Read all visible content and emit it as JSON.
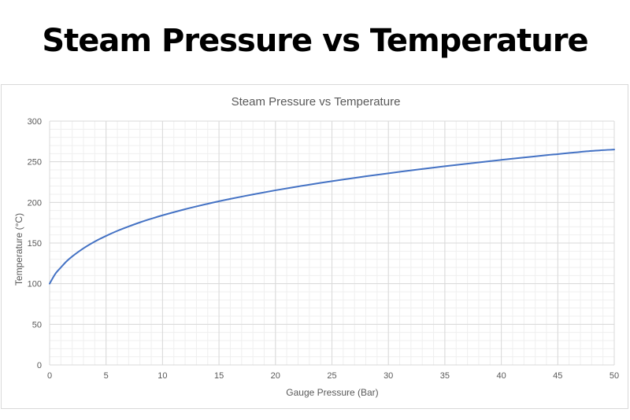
{
  "page": {
    "heading": "Steam Pressure vs Temperature"
  },
  "chart_data": {
    "type": "line",
    "title": "Steam Pressure vs Temperature",
    "xlabel": "Gauge Pressure (Bar)",
    "ylabel": "Temperature (°C)",
    "xlim": [
      0,
      50
    ],
    "ylim": [
      0,
      300
    ],
    "x_ticks": [
      0,
      5,
      10,
      15,
      20,
      25,
      30,
      35,
      40,
      45,
      50
    ],
    "y_ticks": [
      0,
      50,
      100,
      150,
      200,
      250,
      300
    ],
    "grid": true,
    "minor_grid": true,
    "legend": "none",
    "line_color": "#4472c4",
    "series": [
      {
        "x": [
          0,
          0.5,
          1,
          1.5,
          2,
          3,
          4,
          5,
          6,
          7,
          8,
          9,
          10,
          12,
          14,
          15,
          16,
          18,
          20,
          22,
          24,
          25,
          26,
          28,
          30,
          32,
          34,
          35,
          36,
          38,
          40,
          42,
          44,
          45,
          46,
          48,
          50
        ],
        "values": [
          100,
          112,
          120,
          127.5,
          133.5,
          143.5,
          151.8,
          158.8,
          165,
          170.4,
          175.4,
          179.9,
          184.1,
          191.6,
          198.3,
          201.4,
          204.3,
          209.8,
          214.9,
          219.6,
          224,
          226.1,
          228.1,
          232.1,
          235.8,
          239.4,
          242.8,
          244.5,
          246.1,
          249.2,
          252.3,
          255.2,
          258.1,
          259.4,
          260.8,
          263.4,
          265
        ]
      }
    ]
  }
}
